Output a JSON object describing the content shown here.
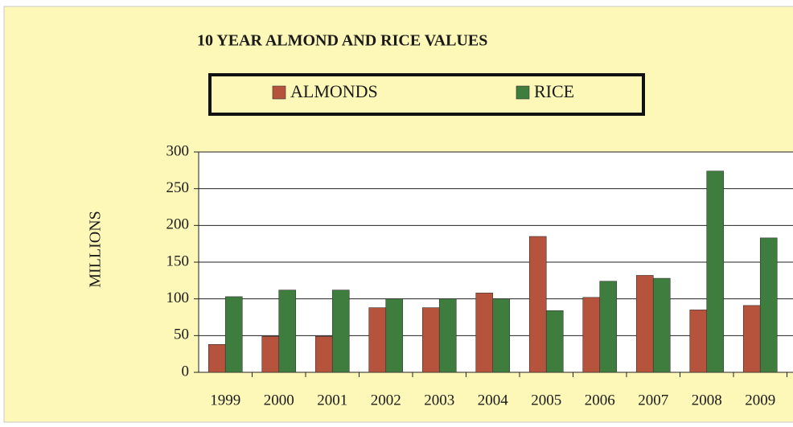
{
  "chart_data": {
    "type": "bar",
    "title": "10 YEAR ALMOND AND RICE VALUES",
    "y_label": "MILLIONS",
    "categories": [
      "1999",
      "2000",
      "2001",
      "2002",
      "2003",
      "2004",
      "2005",
      "2006",
      "2007",
      "2008",
      "2009"
    ],
    "series": [
      {
        "name": "ALMONDS",
        "color": "#b5533c",
        "values": [
          38,
          49,
          49,
          88,
          88,
          108,
          185,
          102,
          132,
          85,
          91
        ]
      },
      {
        "name": "RICE",
        "color": "#3f7d3f",
        "values": [
          103,
          112,
          112,
          100,
          100,
          100,
          84,
          124,
          128,
          274,
          183
        ]
      }
    ],
    "ylim": [
      0,
      300
    ],
    "yticks": [
      0,
      50,
      100,
      150,
      200,
      250,
      300
    ],
    "grid": true,
    "legend": "top"
  }
}
